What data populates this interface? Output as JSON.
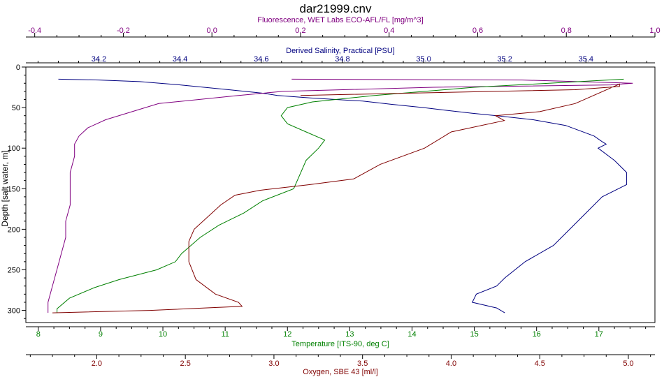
{
  "chart_data": {
    "type": "line",
    "title": "dar21999.cnv",
    "ylabel": "Depth [salt water, m]",
    "ylim": [
      0,
      315
    ],
    "yticks": [
      0,
      50,
      100,
      150,
      200,
      250,
      300
    ],
    "grid": false,
    "axes": [
      {
        "id": "fluor",
        "position": "top-outer",
        "label": "Fluorescence, WET Labs ECO-AFL/FL [mg/m^3]",
        "color": "#800080",
        "range": [
          -0.42,
          1.0
        ],
        "ticks": [
          -0.4,
          -0.2,
          0.0,
          0.2,
          0.4,
          0.6,
          0.8,
          1.0
        ]
      },
      {
        "id": "sal",
        "position": "top-inner",
        "label": "Derived Salinity, Practical [PSU]",
        "color": "#000080",
        "range": [
          34.02,
          35.57
        ],
        "ticks": [
          34.2,
          34.4,
          34.6,
          34.8,
          35.0,
          35.2,
          35.4
        ]
      },
      {
        "id": "temp",
        "position": "bottom-inner",
        "label": "Temperature [ITS-90, deg C]",
        "color": "#008000",
        "range": [
          7.8,
          17.9
        ],
        "ticks": [
          8,
          9,
          10,
          11,
          12,
          13,
          14,
          15,
          16,
          17
        ]
      },
      {
        "id": "oxy",
        "position": "bottom-outer",
        "label": "Oxygen, SBE 43 [ml/l]",
        "color": "#800000",
        "range": [
          1.6,
          5.15
        ],
        "ticks": [
          2.0,
          2.5,
          3.0,
          3.5,
          4.0,
          4.5,
          5.0
        ]
      }
    ],
    "tick_labels": {
      "fluor": [
        "-0.4",
        "-0.2",
        "0.0",
        "0.2",
        "0.4",
        "0.6",
        "0.8",
        "1.0"
      ],
      "sal": [
        "34.2",
        "34.4",
        "34.6",
        "34.8",
        "35.0",
        "35.2",
        "35.4"
      ],
      "temp": [
        "8",
        "9",
        "10",
        "11",
        "12",
        "13",
        "14",
        "15",
        "16",
        "17"
      ],
      "oxy": [
        "2.0",
        "2.5",
        "3.0",
        "3.5",
        "4.0",
        "4.5",
        "5.0"
      ],
      "depth": [
        "0",
        "50",
        "100",
        "150",
        "200",
        "250",
        "300"
      ]
    },
    "series": [
      {
        "axis": "sal",
        "color": "#000080",
        "x": [
          34.1,
          34.2,
          34.3,
          34.4,
          34.52,
          34.6,
          34.64,
          34.72,
          34.85,
          34.92,
          35.0,
          35.05,
          35.12,
          35.18,
          35.27,
          35.35,
          35.42,
          35.44,
          35.45,
          35.43,
          35.47,
          35.5,
          35.5,
          35.44,
          35.4,
          35.36,
          35.32,
          35.25,
          35.2,
          35.18,
          35.13,
          35.12,
          35.18,
          35.2
        ],
        "y": [
          15,
          16,
          18,
          22,
          28,
          32,
          35,
          38,
          42,
          46,
          50,
          53,
          57,
          60,
          65,
          72,
          85,
          92,
          95,
          100,
          115,
          130,
          145,
          160,
          180,
          200,
          220,
          240,
          260,
          270,
          280,
          290,
          297,
          303
        ]
      },
      {
        "axis": "fluor",
        "color": "#800080",
        "x": [
          0.18,
          0.7,
          0.95,
          0.9,
          0.5,
          0.16,
          0.06,
          -0.12,
          -0.18,
          -0.24,
          -0.28,
          -0.3,
          -0.31,
          -0.31,
          -0.32,
          -0.32,
          -0.32,
          -0.33,
          -0.33,
          -0.34,
          -0.35,
          -0.36,
          -0.37,
          -0.37,
          -0.37
        ],
        "y": [
          15,
          16,
          20,
          22,
          25,
          30,
          35,
          45,
          55,
          65,
          75,
          85,
          95,
          110,
          130,
          150,
          170,
          190,
          210,
          230,
          250,
          270,
          290,
          300,
          303
        ]
      },
      {
        "axis": "temp",
        "color": "#008000",
        "x": [
          17.4,
          16.2,
          15.0,
          13.4,
          12.4,
          12.0,
          11.9,
          12.0,
          12.3,
          12.6,
          12.5,
          12.3,
          12.1,
          11.6,
          11.3,
          10.9,
          10.6,
          10.3,
          10.2,
          9.9,
          9.3,
          8.9,
          8.5,
          8.3,
          8.3
        ],
        "y": [
          15,
          20,
          25,
          35,
          43,
          50,
          60,
          70,
          80,
          90,
          100,
          115,
          150,
          165,
          180,
          195,
          210,
          230,
          240,
          250,
          262,
          272,
          285,
          298,
          303
        ]
      },
      {
        "axis": "oxy",
        "color": "#800000",
        "x": [
          3.15,
          4.7,
          4.95,
          4.95,
          4.7,
          4.5,
          4.25,
          4.3,
          4.0,
          3.85,
          3.6,
          3.45,
          3.2,
          2.92,
          2.78,
          2.7,
          2.55,
          2.52,
          2.52,
          2.56,
          2.67,
          2.8,
          2.82,
          2.3,
          1.75
        ],
        "y": [
          35,
          28,
          24,
          21,
          45,
          55,
          60,
          66,
          80,
          100,
          120,
          138,
          145,
          152,
          158,
          170,
          200,
          215,
          240,
          262,
          280,
          290,
          295,
          300,
          303
        ]
      }
    ]
  }
}
